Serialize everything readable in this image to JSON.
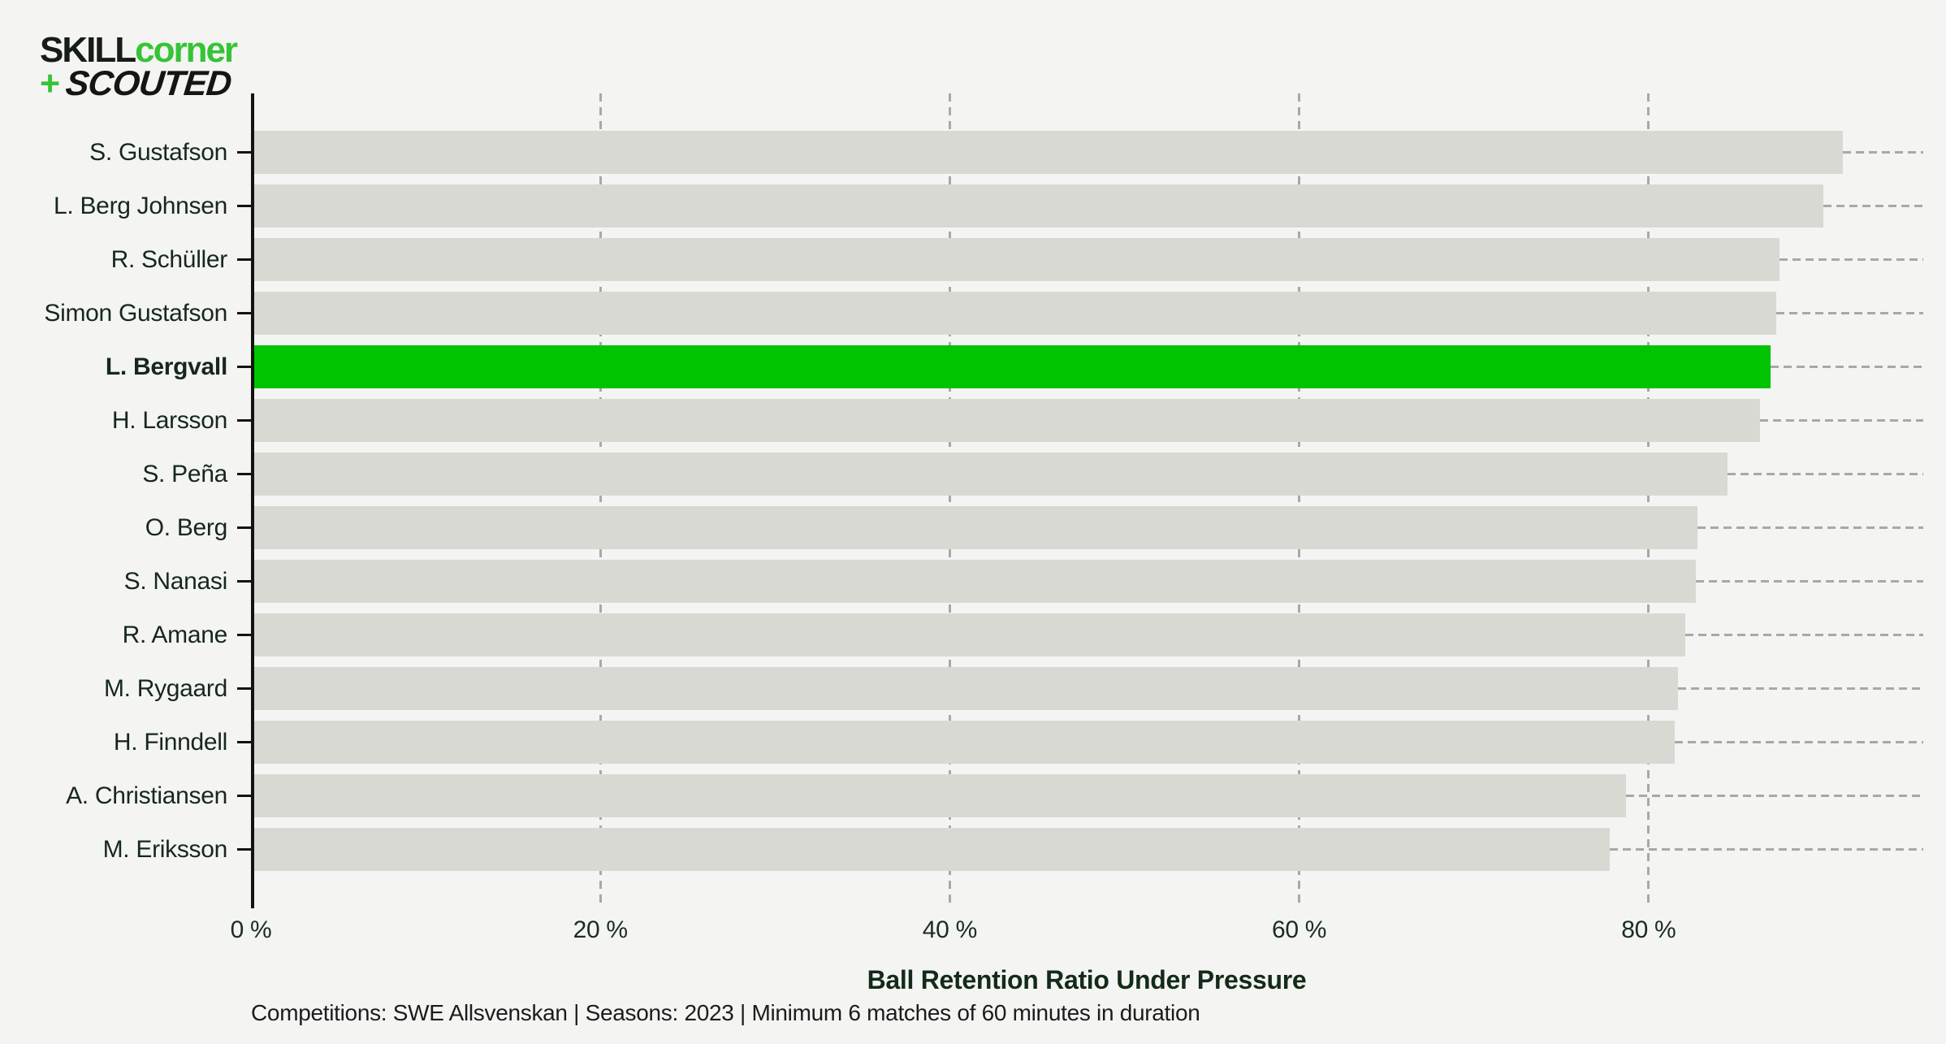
{
  "logo": {
    "skill": "SKILL",
    "corner": "corner",
    "plus": "+",
    "scouted": "SCOUTED"
  },
  "chart_data": {
    "type": "bar",
    "orientation": "horizontal",
    "title": "Ball Retention Ratio Under Pressure",
    "subtitle": "Competitions: SWE Allsvenskan | Seasons: 2023 | Minimum 6 matches of 60 minutes in duration",
    "categories": [
      "S. Gustafson",
      "L. Berg Johnsen",
      "R. Schüller",
      "Simon Gustafson",
      "L. Bergvall",
      "H. Larsson",
      "S. Peña",
      "O. Berg",
      "S. Nanasi",
      "R. Amane",
      "M. Rygaard",
      "H. Finndell",
      "A. Christiansen",
      "M. Eriksson"
    ],
    "values": [
      91.1,
      90.0,
      87.5,
      87.3,
      87.0,
      86.4,
      84.5,
      82.8,
      82.7,
      82.1,
      81.7,
      81.5,
      78.7,
      77.8
    ],
    "unit": "%",
    "highlighted_player": "L. Bergvall",
    "highlight_index": 4,
    "x_ticks": [
      0,
      20,
      40,
      60,
      80
    ],
    "x_tick_labels": [
      "0 %",
      "20 %",
      "40 %",
      "60 %",
      "80 %"
    ],
    "xlim": [
      0,
      95.7
    ],
    "grid": "dashed-vertical-plus-row-leader-lines",
    "legend": "none",
    "colors": {
      "background": "#f4f4f3",
      "bar": "#d8d9d3",
      "highlight": "#00c400",
      "grid": "#a8a8a8",
      "axis": "#131313",
      "text": "#16281b",
      "logo_green": "#35c435",
      "logo_black": "#161d16"
    }
  }
}
